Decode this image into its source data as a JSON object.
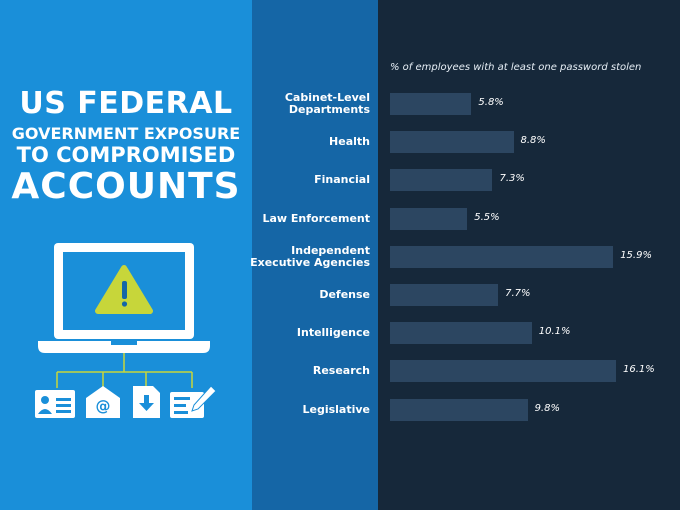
{
  "title": {
    "line1": "US FEDERAL",
    "line2": "GOVERNMENT EXPOSURE",
    "line3": "TO COMPROMISED",
    "line4": "ACCOUNTS"
  },
  "colors": {
    "left_panel": "#1a8fd9",
    "mid_panel": "#1566a6",
    "right_panel": "#16283a",
    "bar": "#2c4661",
    "warning": "#c7d63a"
  },
  "icons": [
    "laptop-icon",
    "warning-icon",
    "id-card-icon",
    "email-icon",
    "download-document-icon",
    "form-edit-icon"
  ],
  "chart_data": {
    "type": "bar",
    "orientation": "horizontal",
    "title": "% of employees with at least one password stolen",
    "categories": [
      "Cabinet-Level Departments",
      "Health",
      "Financial",
      "Law Enforcement",
      "Independent Executive Agencies",
      "Defense",
      "Intelligence",
      "Research",
      "Legislative"
    ],
    "category_lines": [
      [
        "Cabinet-Level",
        "Departments"
      ],
      [
        "Health"
      ],
      [
        "Financial"
      ],
      [
        "Law Enforcement"
      ],
      [
        "Independent",
        "Executive Agencies"
      ],
      [
        "Defense"
      ],
      [
        "Intelligence"
      ],
      [
        "Research"
      ],
      [
        "Legislative"
      ]
    ],
    "values": [
      5.8,
      8.8,
      7.3,
      5.5,
      15.9,
      7.7,
      10.1,
      16.1,
      9.8
    ],
    "value_labels": [
      "5.8%",
      "8.8%",
      "7.3%",
      "5.5%",
      "15.9%",
      "7.7%",
      "10.1%",
      "16.1%",
      "9.8%"
    ],
    "xlim": [
      0,
      16.1
    ],
    "grid": false,
    "legend": "none"
  }
}
